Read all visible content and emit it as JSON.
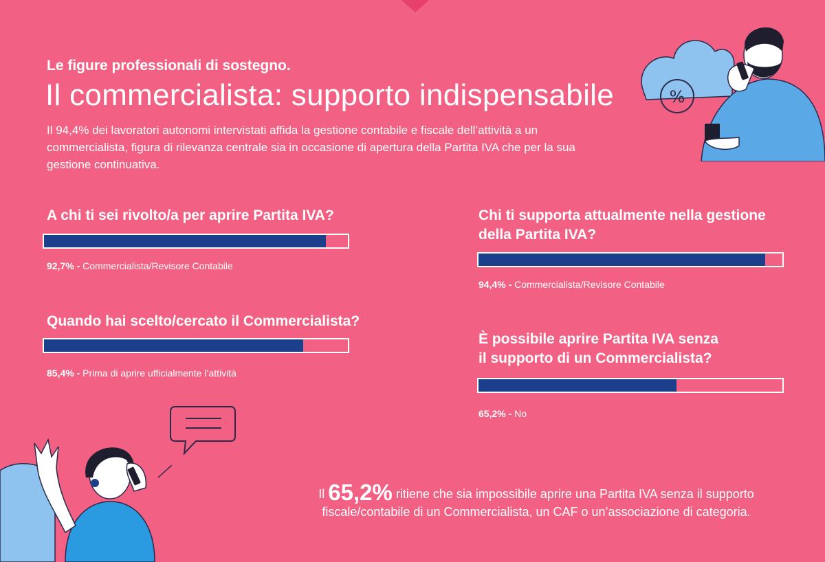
{
  "header": {
    "kicker": "Le figure professionali di sostegno.",
    "title": "Il commercialista: supporto indispensabile",
    "intro": "Il 94,4% dei lavoratori autonomi intervistati affida la gestione contabile e fiscale dell’attività a un commercialista, figura di rilevanza centrale sia in occasione di apertura della Partita IVA che per la sua gestione continuativa."
  },
  "chart_data": [
    {
      "type": "bar",
      "title": "A chi ti sei rivolto/a per aprire Partita IVA?",
      "categories": [
        "Commercialista/Revisore Contabile"
      ],
      "values": [
        92.7
      ],
      "value_label": "92,7% - ",
      "category_label": "Commercialista/Revisore Contabile",
      "xlim": [
        0,
        100
      ]
    },
    {
      "type": "bar",
      "title": "Quando hai scelto/cercato il Commercialista?",
      "categories": [
        "Prima di aprire ufficialmente l’attività"
      ],
      "values": [
        85.4
      ],
      "value_label": "85,4% - ",
      "category_label": "Prima di aprire ufficialmente l’attività",
      "xlim": [
        0,
        100
      ]
    },
    {
      "type": "bar",
      "title_lines": [
        "Chi ti supporta attualmente nella gestione",
        "della Partita IVA?"
      ],
      "categories": [
        "Commercialista/Revisore Contabile"
      ],
      "values": [
        94.4
      ],
      "value_label": "94,4% - ",
      "category_label": "Commercialista/Revisore Contabile",
      "xlim": [
        0,
        100
      ]
    },
    {
      "type": "bar",
      "title_lines": [
        "È possibile aprire Partita IVA senza",
        "il supporto di un Commercialista?"
      ],
      "categories": [
        "No"
      ],
      "values": [
        65.2
      ],
      "value_label": "65,2% - ",
      "category_label": "No",
      "xlim": [
        0,
        100
      ]
    }
  ],
  "footer": {
    "prefix": "Il ",
    "highlight": "65,2%",
    "line1_rest": " ritiene che sia impossibile aprire una Partita IVA senza il supporto",
    "line2": "fiscale/contabile di un Commercialista, un CAF o un’associazione di categoria."
  },
  "colors": {
    "background": "#f26084",
    "bar_fill": "#1c3f8c",
    "bar_border": "#ffffff",
    "illustration_blue": "#5aa9e6",
    "illustration_light_blue": "#8fc3ef"
  },
  "illustrations": {
    "top_right": "man-on-phone-with-coffee-illustration",
    "bottom_left": "woman-on-phone-illustration"
  }
}
